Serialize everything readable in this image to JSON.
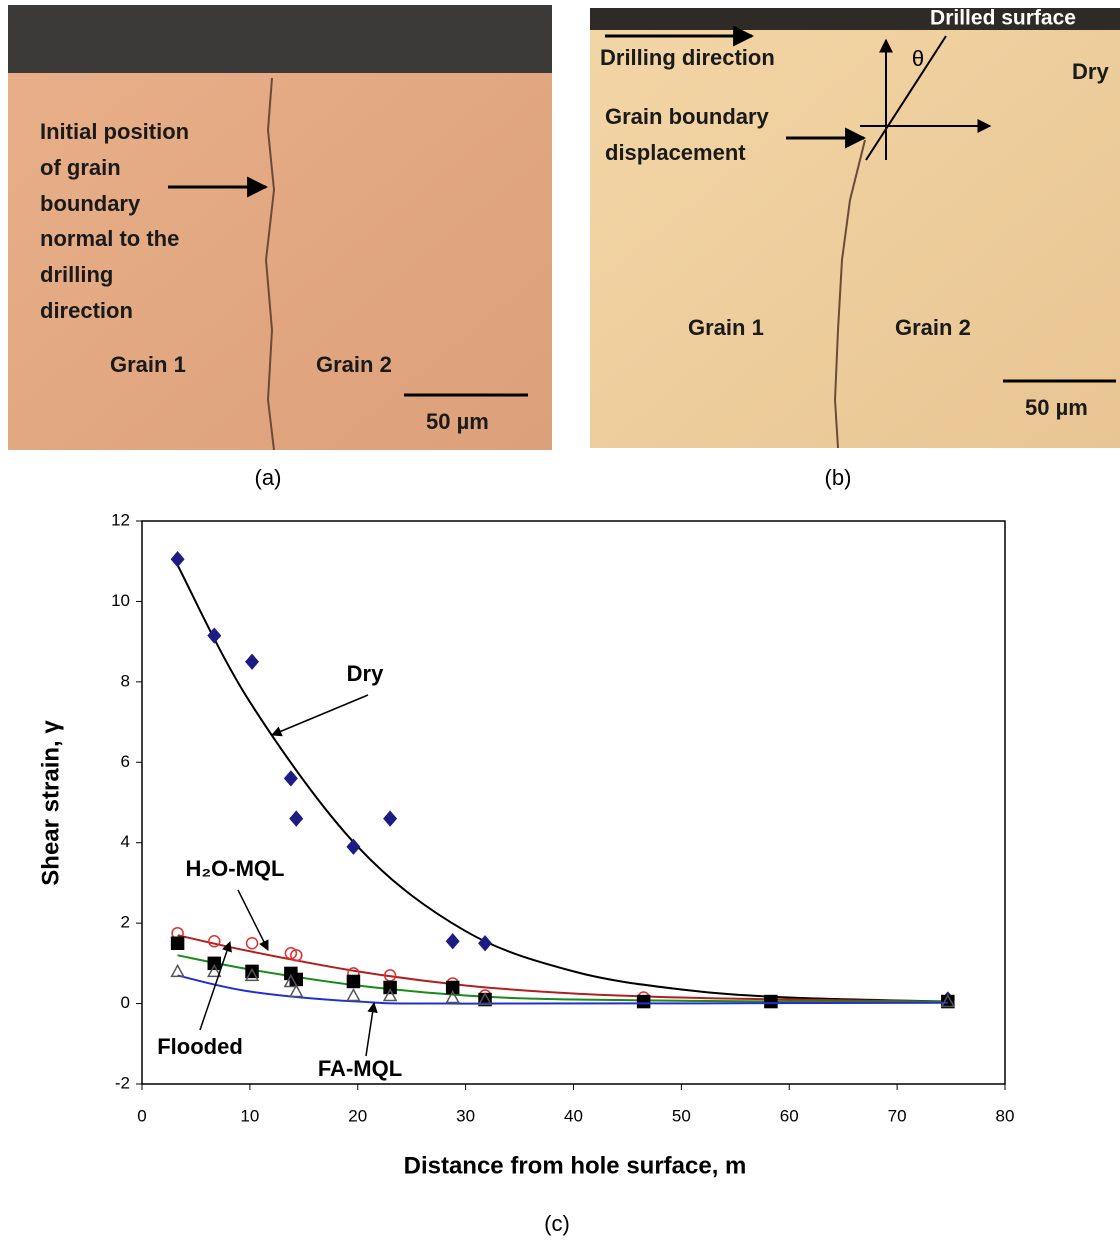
{
  "panels": [
    {
      "caption": "(a)",
      "annotation": [
        "Initial position",
        "of grain",
        "boundary",
        "normal to the",
        "drilling",
        "direction"
      ],
      "grain_labels": [
        "Grain 1",
        "Grain 2"
      ],
      "scale_bar": "50 µm"
    },
    {
      "caption": "(b)",
      "surface_label": "Drilled surface",
      "direction_label": "Drilling direction",
      "angle": "θ",
      "condition": "Dry",
      "annotation": [
        "Grain boundary",
        "displacement"
      ],
      "grain_labels": [
        "Grain 1",
        "Grain 2"
      ],
      "scale_bar": "50 µm"
    }
  ],
  "chart_data": {
    "type": "scatter",
    "caption": "(c)",
    "x_label": "Distance from hole surface,   m",
    "y_label": "Shear strain, γ",
    "xlim": [
      0,
      80
    ],
    "ylim": [
      -2,
      12
    ],
    "xticks": [
      0,
      10,
      20,
      30,
      40,
      50,
      60,
      70,
      80
    ],
    "yticks": [
      -2,
      0,
      2,
      4,
      6,
      8,
      10,
      12
    ],
    "series": [
      {
        "name": "Dry",
        "color": "#1c1c84",
        "marker": "diamond",
        "fill": true,
        "x": [
          3.3,
          6.7,
          10.2,
          13.8,
          14.3,
          19.6,
          23,
          28.8,
          31.8,
          74.7
        ],
        "values": [
          11.05,
          9.15,
          8.5,
          5.6,
          4.6,
          3.9,
          4.6,
          1.55,
          1.5,
          0.1
        ],
        "fit_color": "#000000",
        "fit_x": [
          3.3,
          10,
          20,
          30,
          40,
          50,
          60,
          74.7
        ],
        "fit_values": [
          10.9,
          7.5,
          3.9,
          1.8,
          0.8,
          0.35,
          0.15,
          0.05
        ]
      },
      {
        "name": "H₂O-MQL",
        "color": "#e03030",
        "marker": "circle",
        "fill": false,
        "x": [
          3.3,
          6.7,
          10.2,
          13.8,
          14.3,
          19.6,
          23,
          28.8,
          31.8,
          46.5,
          58.3,
          74.7
        ],
        "values": [
          1.75,
          1.55,
          1.5,
          1.25,
          1.2,
          0.75,
          0.7,
          0.5,
          0.2,
          0.15,
          0.05,
          0.05
        ],
        "fit_color": "#b02020",
        "fit_x": [
          3.3,
          10,
          20,
          30,
          40,
          50,
          60,
          74.7
        ],
        "fit_values": [
          1.7,
          1.3,
          0.8,
          0.45,
          0.25,
          0.15,
          0.1,
          0.05
        ]
      },
      {
        "name": "Flooded",
        "color": "#000000",
        "marker": "square",
        "fill": true,
        "x": [
          3.3,
          6.7,
          10.2,
          13.8,
          14.3,
          19.6,
          23,
          28.8,
          31.8,
          46.5,
          58.3,
          74.7
        ],
        "values": [
          1.5,
          1.0,
          0.8,
          0.75,
          0.6,
          0.55,
          0.4,
          0.4,
          0.1,
          0.05,
          0.05,
          0.05
        ],
        "fit_color": "#1a8a1a",
        "fit_x": [
          3.3,
          10,
          20,
          30,
          40,
          60,
          74.7
        ],
        "fit_values": [
          1.2,
          0.85,
          0.45,
          0.2,
          0.1,
          0.05,
          0.05
        ]
      },
      {
        "name": "FA-MQL",
        "color": "#555555",
        "marker": "triangle",
        "fill": false,
        "x": [
          3.3,
          6.7,
          10.2,
          13.8,
          14.3,
          19.6,
          23,
          28.8,
          31.8,
          74.7
        ],
        "values": [
          0.8,
          0.8,
          0.7,
          0.55,
          0.3,
          0.2,
          0.2,
          0.15,
          0.1,
          0.05
        ],
        "fit_color": "#2030d0",
        "fit_x": [
          3.3,
          10,
          20,
          30,
          74.7
        ],
        "fit_values": [
          0.7,
          0.3,
          0.05,
          0.0,
          0.02
        ]
      }
    ]
  }
}
